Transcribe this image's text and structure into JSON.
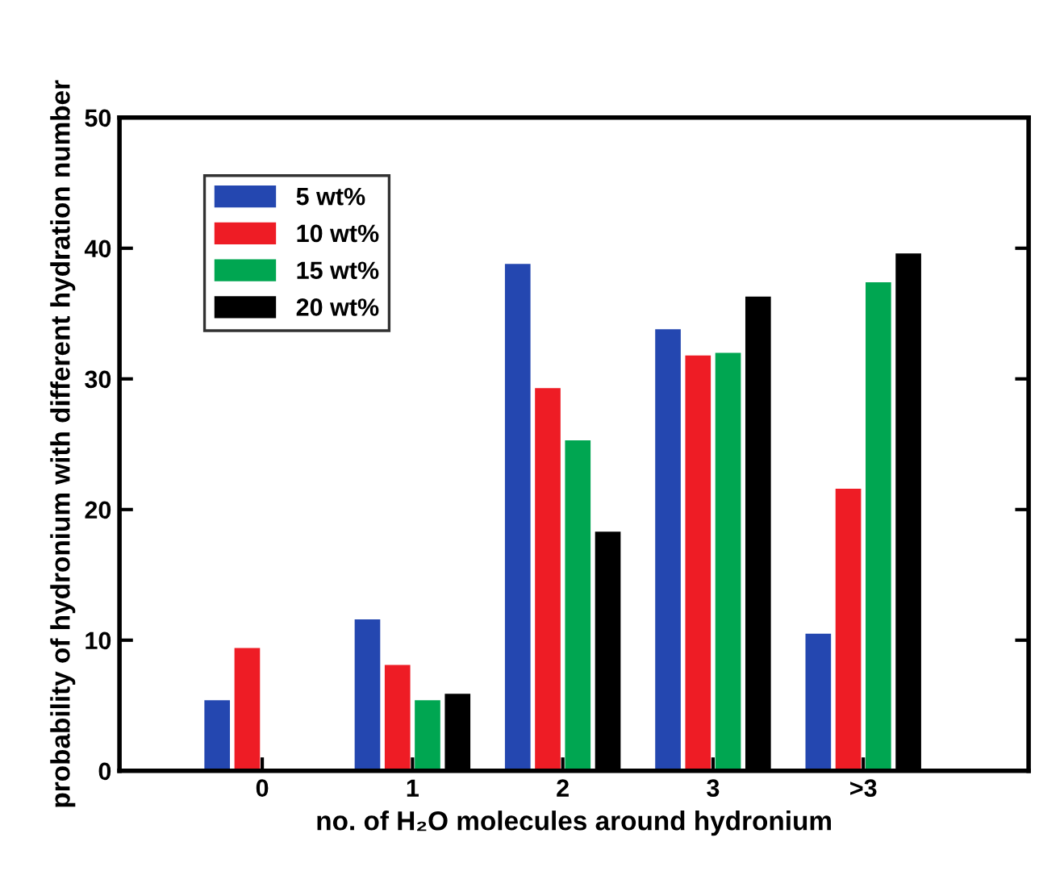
{
  "chart_data": {
    "type": "bar",
    "xlabel": "no. of H₂O molecules around hydronium",
    "ylabel": "probability of hydronium with different hydration number",
    "categories": [
      "0",
      "1",
      "2",
      "3",
      ">3"
    ],
    "series": [
      {
        "name": "5 wt%",
        "color": "#2447b0",
        "values": [
          5.4,
          11.6,
          38.8,
          33.8,
          10.5
        ]
      },
      {
        "name": "10 wt%",
        "color": "#ee1c25",
        "values": [
          9.4,
          8.1,
          29.3,
          31.8,
          21.6
        ]
      },
      {
        "name": "15 wt%",
        "color": "#00a651",
        "values": [
          0,
          5.4,
          25.3,
          32.0,
          37.4
        ]
      },
      {
        "name": "20 wt%",
        "color": "#000000",
        "values": [
          0,
          5.9,
          18.3,
          36.3,
          39.6
        ]
      }
    ],
    "ylim": [
      0,
      50
    ],
    "yticks": [
      0,
      10,
      20,
      30,
      40,
      50
    ],
    "grid": false,
    "legend": "top left"
  }
}
